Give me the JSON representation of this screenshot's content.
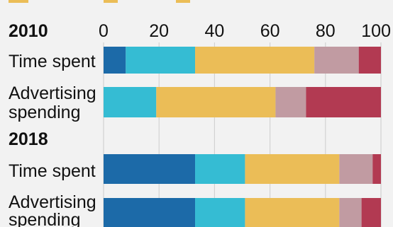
{
  "chart_data": {
    "type": "bar",
    "orientation": "horizontal",
    "stacked": true,
    "xlim": [
      0,
      100
    ],
    "ticks": [
      0,
      20,
      40,
      60,
      80,
      100
    ],
    "grid": true,
    "legend": "top-left (cropped)",
    "groups": [
      {
        "label": "2010",
        "rows": [
          {
            "label": [
              "Time spent"
            ],
            "values": [
              8,
              25,
              43,
              16,
              8
            ]
          },
          {
            "label": [
              "Advertising",
              "spending"
            ],
            "values": [
              0,
              19,
              43,
              11,
              27
            ]
          }
        ]
      },
      {
        "label": "2018",
        "rows": [
          {
            "label": [
              "Time spent"
            ],
            "values": [
              33,
              18,
              34,
              12,
              3
            ]
          },
          {
            "label": [
              "Advertising",
              "spending"
            ],
            "values": [
              33,
              18,
              34,
              8,
              7
            ]
          }
        ]
      }
    ],
    "colors": [
      "#1c6aa8",
      "#35bcd3",
      "#ebbd57",
      "#c19ba2",
      "#b23a52"
    ]
  }
}
